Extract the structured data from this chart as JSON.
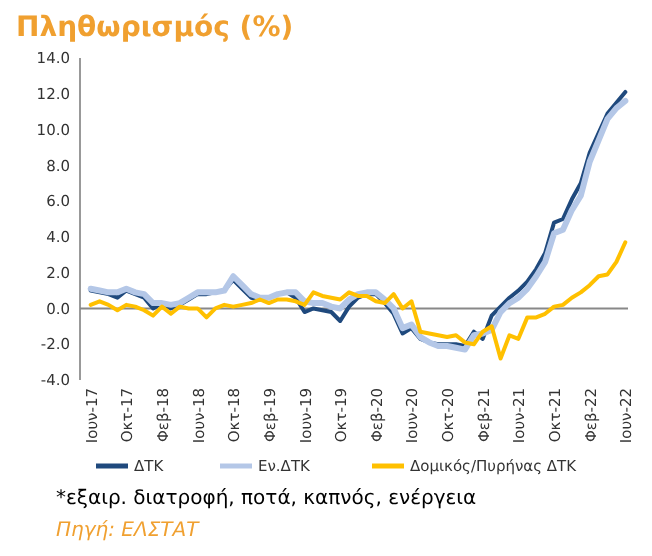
{
  "chart_data": {
    "type": "line",
    "title": "Πληθωρισμός (%)",
    "categories": [
      "Ιουν-17",
      null,
      null,
      null,
      "Οκτ-17",
      null,
      null,
      null,
      "Φεβ-18",
      null,
      null,
      null,
      "Ιουν-18",
      null,
      null,
      null,
      "Οκτ-18",
      null,
      null,
      null,
      "Φεβ-19",
      null,
      null,
      null,
      "Ιουν-19",
      null,
      null,
      null,
      "Οκτ-19",
      null,
      null,
      null,
      "Φεβ-20",
      null,
      null,
      null,
      "Ιουν-20",
      null,
      null,
      null,
      "Οκτ-20",
      null,
      null,
      null,
      "Φεβ-21",
      null,
      null,
      null,
      "Ιουν-21",
      null,
      null,
      null,
      "Οκτ-21",
      null,
      null,
      null,
      "Φεβ-22",
      null,
      null,
      null,
      "Ιουν-22"
    ],
    "series": [
      {
        "name": "ΔΤΚ",
        "color": "#1f497d",
        "values": [
          1.0,
          0.9,
          0.8,
          0.6,
          1.0,
          0.8,
          0.6,
          0.0,
          0.3,
          0.0,
          0.2,
          0.5,
          0.8,
          0.8,
          0.9,
          1.0,
          1.6,
          1.1,
          0.6,
          0.5,
          0.6,
          0.8,
          0.9,
          0.6,
          -0.2,
          0.0,
          -0.1,
          -0.2,
          -0.7,
          0.1,
          0.6,
          0.8,
          0.8,
          0.3,
          -0.3,
          -1.4,
          -1.1,
          -1.7,
          -1.9,
          -2.0,
          -2.0,
          -2.0,
          -2.1,
          -1.3,
          -1.7,
          -0.4,
          0.1,
          0.6,
          1.0,
          1.5,
          2.2,
          3.1,
          4.8,
          5.0,
          6.1,
          7.0,
          8.7,
          9.8,
          10.9,
          11.5,
          12.1
        ]
      },
      {
        "name": "Εν.ΔΤΚ",
        "color": "#b4c7e7",
        "values": [
          1.1,
          1.0,
          0.9,
          0.9,
          1.1,
          0.9,
          0.8,
          0.3,
          0.3,
          0.2,
          0.3,
          0.6,
          0.9,
          0.9,
          0.9,
          1.0,
          1.8,
          1.3,
          0.8,
          0.6,
          0.6,
          0.8,
          0.9,
          0.9,
          0.4,
          0.3,
          0.3,
          0.1,
          0.0,
          0.5,
          0.8,
          0.9,
          0.9,
          0.5,
          0.0,
          -1.1,
          -0.9,
          -1.6,
          -1.9,
          -2.1,
          -2.1,
          -2.2,
          -2.3,
          -1.5,
          -1.4,
          -1.2,
          -0.2,
          0.3,
          0.6,
          1.1,
          1.8,
          2.6,
          4.2,
          4.4,
          5.5,
          6.3,
          8.2,
          9.4,
          10.6,
          11.2,
          11.6
        ]
      },
      {
        "name": "Δομικός/Πυρήνας ΔΤΚ",
        "color": "#ffc000",
        "values": [
          0.2,
          0.4,
          0.2,
          -0.1,
          0.2,
          0.1,
          -0.1,
          -0.4,
          0.1,
          -0.3,
          0.1,
          0.0,
          0.0,
          -0.5,
          0.0,
          0.2,
          0.1,
          0.2,
          0.3,
          0.5,
          0.3,
          0.5,
          0.5,
          0.4,
          0.2,
          0.9,
          0.7,
          0.6,
          0.5,
          0.9,
          0.7,
          0.7,
          0.4,
          0.3,
          0.8,
          0.0,
          0.4,
          -1.3,
          -1.4,
          -1.5,
          -1.6,
          -1.5,
          -1.9,
          -2.0,
          -1.3,
          -1.0,
          -2.8,
          -1.5,
          -1.7,
          -0.5,
          -0.5,
          -0.3,
          0.1,
          0.2,
          0.6,
          0.9,
          1.3,
          1.8,
          1.9,
          2.6,
          3.7
        ]
      }
    ],
    "ylim": [
      -4,
      14
    ],
    "yticks": [
      {
        "value": -4,
        "label": "-4.0"
      },
      {
        "value": -2,
        "label": "-2.0"
      },
      {
        "value": 0,
        "label": "0.0"
      },
      {
        "value": 2,
        "label": "2.0"
      },
      {
        "value": 4,
        "label": "4.0"
      },
      {
        "value": 6,
        "label": "6.0"
      },
      {
        "value": 8,
        "label": "8.0"
      },
      {
        "value": 10,
        "label": "10.0"
      },
      {
        "value": 12,
        "label": "12.0"
      },
      {
        "value": 14,
        "label": "14.0"
      }
    ],
    "legend": "bottom",
    "annotations": [
      "*εξαιρ. διατροφή, ποτά, καπνός, ενέργεια",
      "Πηγή: ΕΛΣΤΑΤ"
    ]
  }
}
